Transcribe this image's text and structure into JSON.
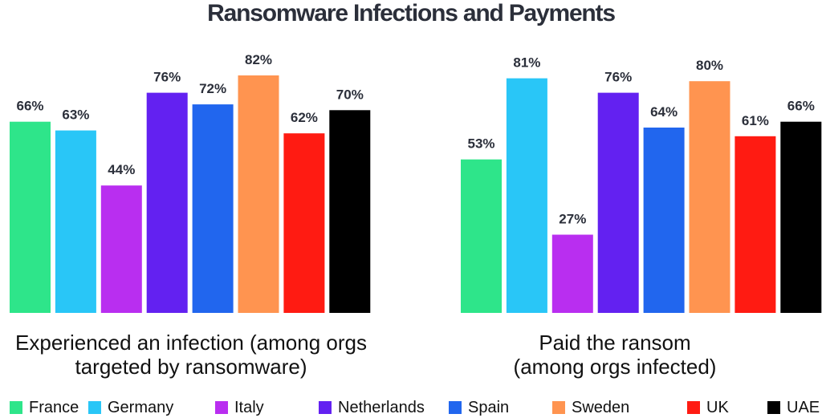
{
  "chart_data": {
    "type": "bar",
    "title": "Ransomware Infections and Payments",
    "categories": [
      "France",
      "Germany",
      "Italy",
      "Netherlands",
      "Spain",
      "Sweden",
      "UK",
      "UAE"
    ],
    "colors": [
      "#2ee58a",
      "#29c6f7",
      "#b92ef0",
      "#6321f1",
      "#2166ee",
      "#ff9450",
      "#ff1b12",
      "#000000"
    ],
    "ylim": [
      0,
      100
    ],
    "grid": false,
    "legend_position": "bottom",
    "panels": [
      {
        "caption_lines": [
          "Experienced an infection (among orgs",
          "targeted by ransomware)"
        ],
        "values": [
          66,
          63,
          44,
          76,
          72,
          82,
          62,
          70
        ],
        "labels": [
          "66%",
          "63%",
          "44%",
          "76%",
          "72%",
          "82%",
          "62%",
          "70%"
        ]
      },
      {
        "caption_lines": [
          "Paid the ransom",
          "(among orgs infected)"
        ],
        "values": [
          53,
          81,
          27,
          76,
          64,
          80,
          61,
          66
        ],
        "labels": [
          "53%",
          "81%",
          "27%",
          "76%",
          "64%",
          "80%",
          "61%",
          "66%"
        ]
      }
    ]
  }
}
